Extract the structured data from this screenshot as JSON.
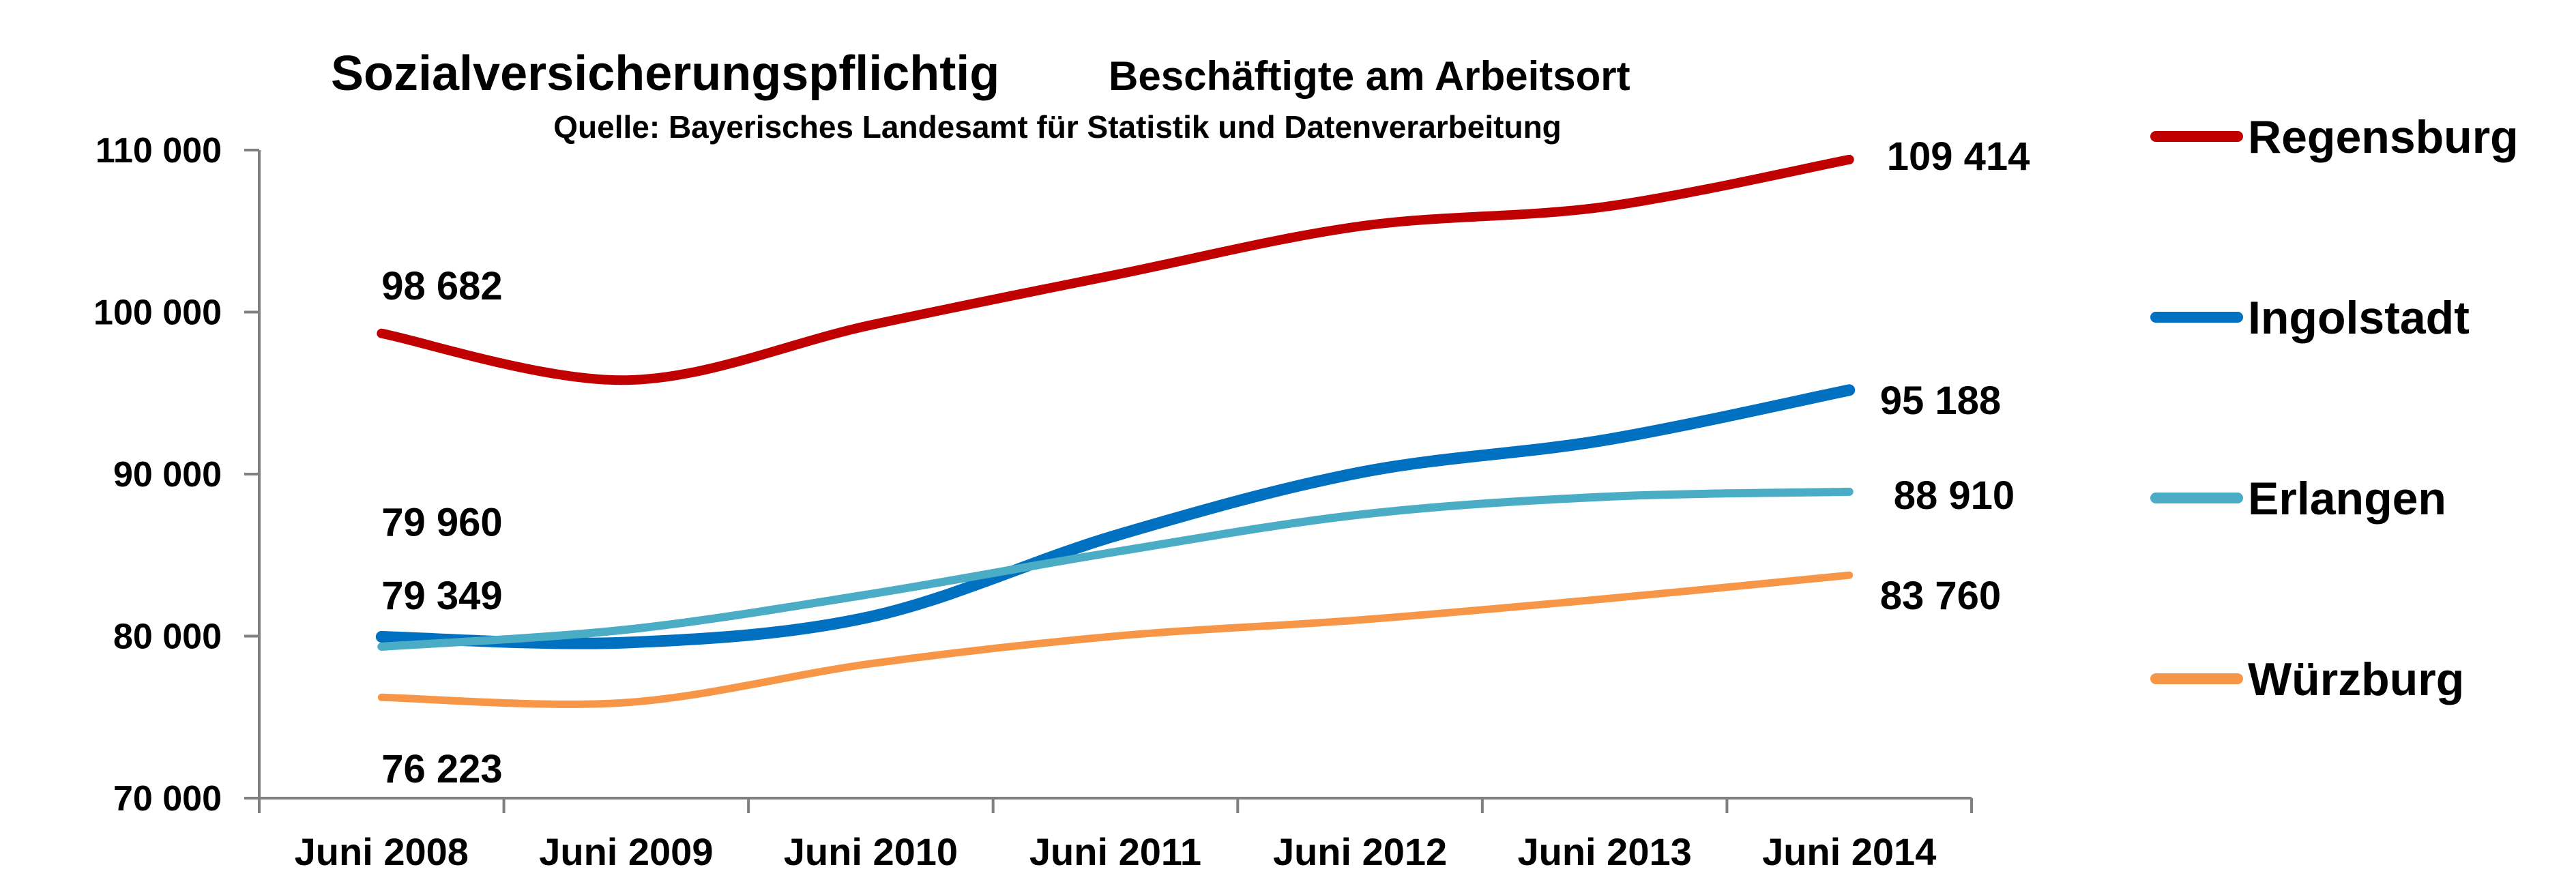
{
  "chart_data": {
    "type": "line",
    "title": "Sozialversicherungspflichtig",
    "subtitle": "Beschäftigte am Arbeitsort",
    "source": "Quelle: Bayerisches Landesamt für Statistik und Datenverarbeitung",
    "xlabel": "",
    "ylabel": "",
    "categories": [
      "Juni 2008",
      "Juni 2009",
      "Juni 2010",
      "Juni 2011",
      "Juni 2012",
      "Juni 2013",
      "Juni 2014"
    ],
    "ylim": [
      70000,
      110000
    ],
    "yticks": [
      70000,
      80000,
      90000,
      100000,
      110000
    ],
    "ytick_labels": [
      "70 000",
      "80 000",
      "90 000",
      "100 000",
      "110 000"
    ],
    "grid": false,
    "legend_position": "right",
    "series": [
      {
        "name": "Regensburg",
        "color": "#C00000",
        "values": [
          98682,
          95800,
          99200,
          102300,
          105300,
          106500,
          109414
        ],
        "labels": [
          {
            "index": 0,
            "text": "98 682"
          },
          {
            "index": 6,
            "text": "109 414"
          }
        ]
      },
      {
        "name": "Ingolstadt",
        "color": "#0070C0",
        "values": [
          79960,
          79600,
          81200,
          86200,
          90100,
          92100,
          95188
        ],
        "labels": [
          {
            "index": 0,
            "text": "79 960"
          },
          {
            "index": 6,
            "text": "95 188"
          }
        ]
      },
      {
        "name": "Erlangen",
        "color": "#4BACC6",
        "values": [
          79349,
          80400,
          82600,
          85200,
          87500,
          88600,
          88910
        ],
        "labels": [
          {
            "index": 0,
            "text": "79 349"
          },
          {
            "index": 6,
            "text": "88 910"
          }
        ]
      },
      {
        "name": "Würzburg",
        "color": "#F79646",
        "values": [
          76223,
          75900,
          78300,
          80000,
          81000,
          82300,
          83760
        ],
        "labels": [
          {
            "index": 0,
            "text": "76 223"
          },
          {
            "index": 6,
            "text": "83 760"
          }
        ]
      }
    ]
  }
}
